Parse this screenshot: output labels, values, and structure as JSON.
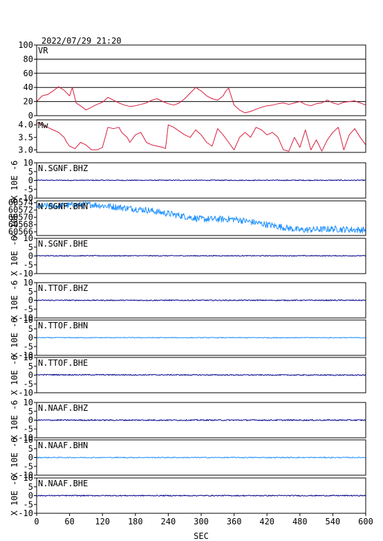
{
  "header": {
    "timestamp": "2022/07/29 21:20"
  },
  "colors": {
    "vr": "#d81b3c",
    "mw": "#d81b3c",
    "dark": "#00008b",
    "light": "#1e8fff",
    "grid": "#000000"
  },
  "chart_data": {
    "type": "line",
    "xlabel": "SEC",
    "xlim": [
      0,
      600
    ],
    "xticks": [
      "0",
      "60",
      "120",
      "180",
      "240",
      "300",
      "360",
      "420",
      "480",
      "540",
      "600"
    ],
    "panels": [
      {
        "id": "vr",
        "label": "VR",
        "ylabel": "",
        "color": "mw",
        "ylim": [
          0,
          100
        ],
        "yticks": [
          "0",
          "20",
          "40",
          "60",
          "80",
          "100"
        ],
        "gridlines": [
          20,
          40,
          60,
          80
        ],
        "x": [
          0,
          10,
          20,
          30,
          40,
          50,
          60,
          65,
          72,
          80,
          90,
          100,
          110,
          120,
          130,
          140,
          150,
          160,
          170,
          180,
          190,
          200,
          210,
          220,
          230,
          240,
          250,
          260,
          270,
          280,
          290,
          300,
          310,
          320,
          330,
          340,
          345,
          350,
          360,
          370,
          380,
          390,
          400,
          410,
          420,
          430,
          440,
          450,
          460,
          470,
          480,
          490,
          500,
          510,
          520,
          530,
          540,
          550,
          560,
          570,
          580,
          590,
          600
        ],
        "values": [
          20,
          28,
          30,
          35,
          41,
          36,
          28,
          40,
          18,
          14,
          8,
          12,
          16,
          19,
          26,
          22,
          18,
          15,
          13,
          14,
          16,
          18,
          22,
          24,
          20,
          17,
          15,
          18,
          24,
          32,
          40,
          35,
          28,
          24,
          22,
          28,
          35,
          39,
          15,
          8,
          4,
          6,
          9,
          12,
          14,
          15,
          17,
          18,
          16,
          18,
          20,
          16,
          14,
          17,
          18,
          22,
          18,
          16,
          19,
          20,
          21,
          18,
          15
        ]
      },
      {
        "id": "mw",
        "label": "Mw",
        "ylabel": "",
        "color": "mw",
        "ylim": [
          2.9,
          4.2
        ],
        "yticks": [
          "3.0",
          "3.5",
          "4.0"
        ],
        "gridlines": [],
        "x": [
          0,
          5,
          10,
          20,
          30,
          40,
          50,
          55,
          60,
          65,
          70,
          80,
          90,
          95,
          100,
          110,
          120,
          130,
          140,
          150,
          155,
          165,
          170,
          180,
          190,
          200,
          210,
          220,
          230,
          235,
          240,
          250,
          260,
          270,
          280,
          290,
          300,
          310,
          320,
          330,
          340,
          350,
          360,
          370,
          380,
          390,
          400,
          410,
          420,
          430,
          440,
          450,
          460,
          470,
          480,
          490,
          500,
          510,
          520,
          530,
          540,
          550,
          560,
          570,
          580,
          590,
          600
        ],
        "values": [
          4.05,
          4.1,
          4.0,
          3.9,
          3.8,
          3.7,
          3.5,
          3.3,
          3.15,
          3.1,
          3.05,
          3.3,
          3.2,
          3.1,
          3.0,
          3.0,
          3.1,
          3.9,
          3.85,
          3.9,
          3.7,
          3.5,
          3.3,
          3.6,
          3.7,
          3.3,
          3.2,
          3.15,
          3.1,
          3.05,
          4.0,
          3.9,
          3.75,
          3.6,
          3.5,
          3.8,
          3.6,
          3.3,
          3.15,
          3.85,
          3.6,
          3.3,
          3.0,
          3.5,
          3.7,
          3.5,
          3.9,
          3.8,
          3.6,
          3.7,
          3.5,
          3.0,
          2.95,
          3.5,
          3.1,
          3.8,
          3.0,
          3.4,
          2.95,
          3.4,
          3.7,
          3.9,
          3.0,
          3.6,
          3.85,
          3.5,
          3.2
        ]
      },
      {
        "id": "sgnf-bhz",
        "label": "N.SGNF.BHZ",
        "ylabel": "X 10E -6",
        "color": "dark",
        "ylim": [
          -10,
          10
        ],
        "yticks": [
          "-10",
          "-5",
          "0",
          "5",
          "10"
        ],
        "gridlines": [],
        "trend": [
          [
            0,
            0.1
          ],
          [
            600,
            0.1
          ]
        ],
        "noise": 0.25
      },
      {
        "id": "sgnf-bhn",
        "label": "N.SGNF.BHN",
        "ylabel": "X 10E -6",
        "color": "light",
        "ylim": [
          60565,
          60574.5
        ],
        "yticks": [
          "60566",
          "60568",
          "60570",
          "60572",
          "60574"
        ],
        "gridlines": [],
        "trend": [
          [
            0,
            60573
          ],
          [
            100,
            60573.5
          ],
          [
            200,
            60572
          ],
          [
            300,
            60569.5
          ],
          [
            360,
            60569.5
          ],
          [
            420,
            60568
          ],
          [
            480,
            60566.5
          ],
          [
            540,
            60566.8
          ],
          [
            600,
            60566.5
          ]
        ],
        "noise": 0.9
      },
      {
        "id": "sgnf-bhe",
        "label": "N.SGNF.BHE",
        "ylabel": "X 10E -6",
        "color": "dark",
        "ylim": [
          -10,
          10
        ],
        "yticks": [
          "-10",
          "-5",
          "0",
          "5",
          "10"
        ],
        "gridlines": [],
        "trend": [
          [
            0,
            0.1
          ],
          [
            600,
            0.1
          ]
        ],
        "noise": 0.25
      },
      {
        "id": "ttof-bhz",
        "label": "N.TTOF.BHZ",
        "ylabel": "X 10E -6",
        "color": "dark",
        "ylim": [
          -10,
          10
        ],
        "yticks": [
          "-10",
          "-5",
          "0",
          "5",
          "10"
        ],
        "gridlines": [],
        "trend": [
          [
            0,
            0
          ],
          [
            600,
            0
          ]
        ],
        "noise": 0.3
      },
      {
        "id": "ttof-bhn",
        "label": "N.TTOF.BHN",
        "ylabel": "X 10E -6",
        "color": "light",
        "ylim": [
          -10,
          10
        ],
        "yticks": [
          "-10",
          "-5",
          "0",
          "5",
          "10"
        ],
        "gridlines": [],
        "trend": [
          [
            0,
            0
          ],
          [
            600,
            0
          ]
        ],
        "noise": 0.25
      },
      {
        "id": "ttof-bhe",
        "label": "N.TTOF.BHE",
        "ylabel": "X 10E -6",
        "color": "dark",
        "ylim": [
          -10,
          10
        ],
        "yticks": [
          "-10",
          "-5",
          "0",
          "5",
          "10"
        ],
        "gridlines": [],
        "trend": [
          [
            0,
            0.2
          ],
          [
            600,
            0
          ]
        ],
        "noise": 0.3
      },
      {
        "id": "naaf-bhz",
        "label": "N.NAAF.BHZ",
        "ylabel": "X 10E -6",
        "color": "dark",
        "ylim": [
          -10,
          10
        ],
        "yticks": [
          "-10",
          "-5",
          "0",
          "5",
          "10"
        ],
        "gridlines": [],
        "trend": [
          [
            0,
            0
          ],
          [
            600,
            0
          ]
        ],
        "noise": 0.35
      },
      {
        "id": "naaf-bhn",
        "label": "N.NAAF.BHN",
        "ylabel": "X 10E -6",
        "color": "light",
        "ylim": [
          -10,
          10
        ],
        "yticks": [
          "-10",
          "-5",
          "0",
          "5",
          "10"
        ],
        "gridlines": [],
        "trend": [
          [
            0,
            0
          ],
          [
            600,
            0
          ]
        ],
        "noise": 0.3
      },
      {
        "id": "naaf-bhe",
        "label": "N.NAAF.BHE",
        "ylabel": "X 10E -6",
        "color": "dark",
        "ylim": [
          -10,
          10
        ],
        "yticks": [
          "-10",
          "-5",
          "0",
          "5",
          "10"
        ],
        "gridlines": [],
        "trend": [
          [
            0,
            0
          ],
          [
            600,
            0
          ]
        ],
        "noise": 0.3
      }
    ]
  }
}
